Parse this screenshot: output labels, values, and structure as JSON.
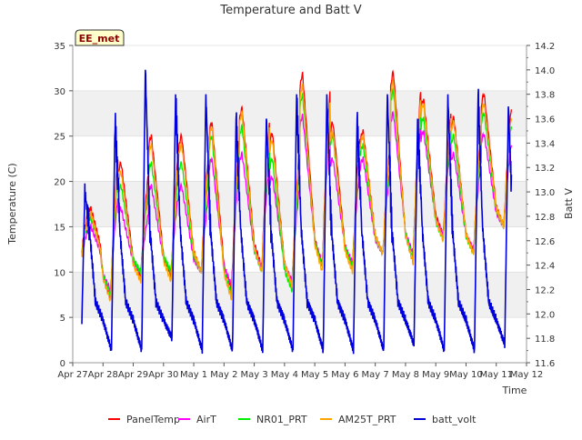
{
  "chart_data": {
    "type": "line",
    "title": "Temperature and Batt V",
    "xlabel": "Time",
    "ylabel": "Temperature (C)",
    "y2label": "Batt V",
    "station_tag": "EE_met",
    "x_ticks": [
      "Apr 27",
      "Apr 28",
      "Apr 29",
      "Apr 30",
      "May 1",
      "May 2",
      "May 3",
      "May 4",
      "May 5",
      "May 6",
      "May 7",
      "May 8",
      "May 9",
      "May 10",
      "May 11",
      "May 12"
    ],
    "y_ticks": [
      "0",
      "5",
      "10",
      "15",
      "20",
      "25",
      "30",
      "35"
    ],
    "y2_ticks": [
      "11.6",
      "11.8",
      "12.0",
      "12.2",
      "12.4",
      "12.6",
      "12.8",
      "13.0",
      "13.2",
      "13.4",
      "13.6",
      "13.8",
      "14.0",
      "14.2"
    ],
    "xlim": [
      0,
      15
    ],
    "ylim": [
      0,
      35
    ],
    "y2lim": [
      11.6,
      14.2
    ],
    "grid": "horizontal bands",
    "legend_position": "bottom",
    "daily_extrema": {
      "days": [
        0.4,
        1,
        2,
        3,
        4,
        5,
        6,
        7,
        8,
        9,
        10,
        11,
        12,
        13,
        14
      ],
      "panel_max": [
        17,
        24.5,
        22,
        25,
        25,
        26.5,
        28,
        25.3,
        31.8,
        26.5,
        25.5,
        32,
        29,
        27,
        29.6
      ],
      "panel_min": [
        11,
        7,
        9.5,
        9.5,
        10,
        8,
        10.5,
        8.5,
        10.5,
        10.5,
        12,
        11,
        14,
        12,
        15
      ],
      "airt_max": [
        15,
        19.5,
        17,
        19.5,
        19.5,
        22.5,
        23,
        20.5,
        27.2,
        22.5,
        22.5,
        27.5,
        25.5,
        23,
        25.2
      ],
      "airt_min": [
        11,
        8,
        10,
        10,
        10,
        8.5,
        10.5,
        9,
        11,
        11,
        12,
        12,
        14,
        12.5,
        15
      ],
      "nr01_max": [
        16,
        22,
        19.5,
        22,
        22,
        25,
        26,
        22.5,
        29.5,
        25,
        24,
        30,
        27,
        25,
        27.5
      ],
      "nr01_min": [
        11,
        7.5,
        10,
        10,
        10,
        7.5,
        10,
        8,
        10.5,
        10.5,
        12,
        11.5,
        13.5,
        12,
        15
      ],
      "am25t_max": [
        16.5,
        23.5,
        21,
        24,
        24,
        26,
        27.5,
        24.5,
        30.5,
        25.5,
        25,
        31,
        28.5,
        26.5,
        28.5
      ],
      "am25t_min": [
        10.5,
        6.8,
        9,
        9,
        10,
        7,
        10,
        8.5,
        10,
        10,
        12,
        11,
        13.5,
        12,
        15
      ],
      "batt_max": [
        13.0,
        13.6,
        14.0,
        13.8,
        13.8,
        13.6,
        13.6,
        13.8,
        13.8,
        13.6,
        13.8,
        13.6,
        13.8,
        13.8,
        13.7
      ],
      "batt_min": [
        11.7,
        11.7,
        11.7,
        11.8,
        11.7,
        11.7,
        11.7,
        11.7,
        11.7,
        11.7,
        11.7,
        11.75,
        11.7,
        11.7,
        11.75
      ]
    },
    "series": [
      {
        "name": "PanelTemp",
        "color": "#ff0000",
        "axis": "left"
      },
      {
        "name": "AirT",
        "color": "#ff00ff",
        "axis": "left"
      },
      {
        "name": "NR01_PRT",
        "color": "#00ee00",
        "axis": "left"
      },
      {
        "name": "AM25T_PRT",
        "color": "#ffa500",
        "axis": "left"
      },
      {
        "name": "batt_volt",
        "color": "#0000dd",
        "axis": "right"
      }
    ]
  }
}
